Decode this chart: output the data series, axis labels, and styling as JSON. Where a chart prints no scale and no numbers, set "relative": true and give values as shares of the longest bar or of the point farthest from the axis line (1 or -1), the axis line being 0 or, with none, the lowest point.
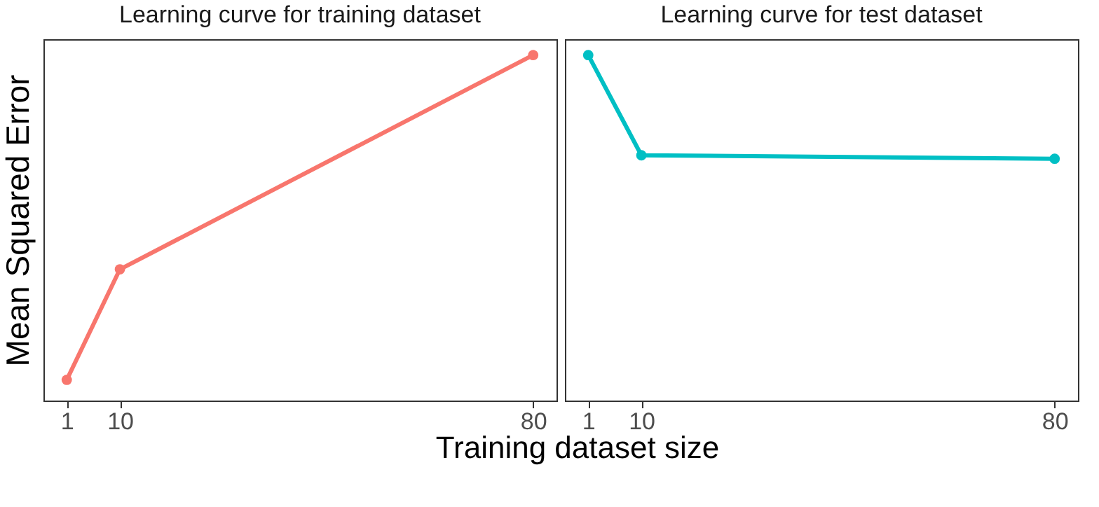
{
  "chart_data": [
    {
      "type": "line",
      "title": "Learning curve for training dataset",
      "ylabel": "Mean Squared Error",
      "xlabel": "Training dataset size",
      "x": [
        1,
        10,
        80
      ],
      "series": [
        {
          "color": "#f8766d",
          "values": [
            0.06,
            0.38,
            1
          ]
        }
      ],
      "relative": true,
      "xlim": [
        -2.95,
        83.95
      ],
      "xticks": [
        1,
        10,
        80
      ],
      "grid": false,
      "marker": "circle"
    },
    {
      "type": "line",
      "title": "Learning curve for test dataset",
      "x": [
        1,
        10,
        80
      ],
      "series": [
        {
          "color": "#00bfc4",
          "values": [
            1,
            0.71,
            0.7
          ]
        }
      ],
      "relative": true,
      "xlim": [
        -2.95,
        83.95
      ],
      "xticks": [
        1,
        10,
        80
      ],
      "grid": false,
      "marker": "circle"
    }
  ]
}
